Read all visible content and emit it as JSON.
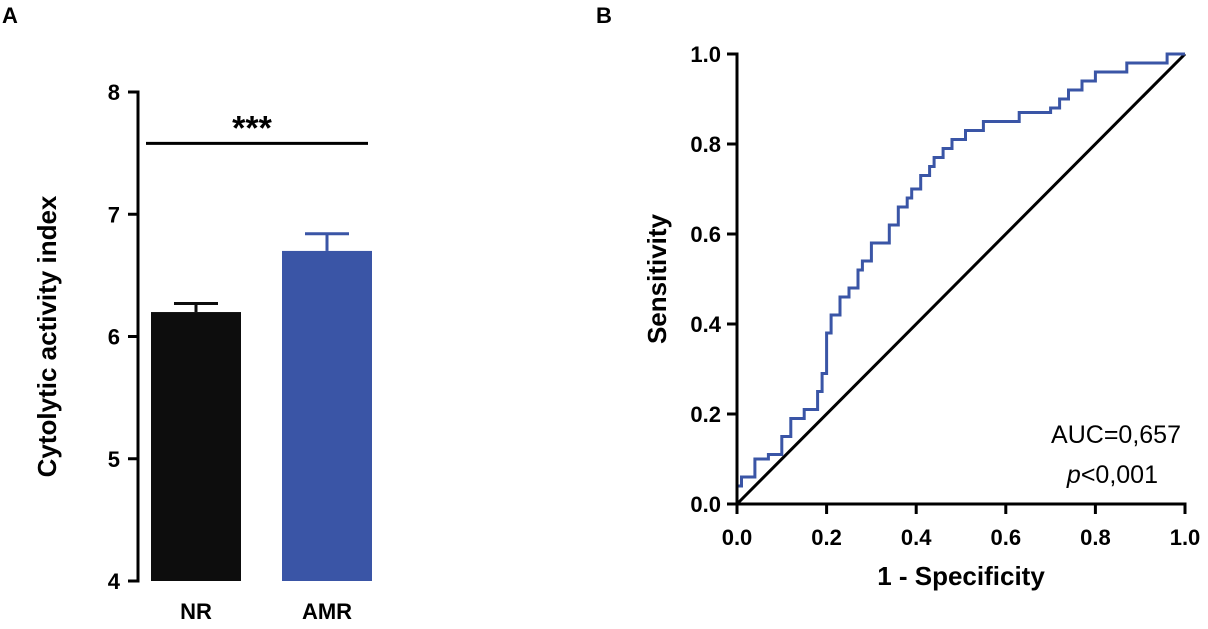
{
  "panels": {
    "a_label": "A",
    "b_label": "B"
  },
  "chart_data": [
    {
      "type": "bar",
      "panel": "A",
      "categories": [
        "NR",
        "AMR"
      ],
      "values": [
        6.2,
        6.7
      ],
      "errors_upper": [
        0.07,
        0.14
      ],
      "colors": [
        "#0d0d0d",
        "#3a55a6"
      ],
      "title": "",
      "xlabel": "",
      "ylabel": "Cytolytic activity index",
      "ylim": [
        4,
        8
      ],
      "yticks": [
        "4",
        "5",
        "6",
        "7",
        "8"
      ],
      "yticks_values": [
        4,
        5,
        6,
        7,
        8
      ],
      "significance": {
        "label": "***",
        "y": 7.58,
        "between": [
          "NR",
          "AMR"
        ]
      },
      "grid": false
    },
    {
      "type": "line",
      "panel": "B",
      "title": "",
      "xlabel": "1 - Specificity",
      "ylabel": "Sensitivity",
      "xlim": [
        0,
        1
      ],
      "ylim": [
        0,
        1
      ],
      "xticks": [
        "0.0",
        "0.2",
        "0.4",
        "0.6",
        "0.8",
        "1.0"
      ],
      "yticks": [
        "0.0",
        "0.2",
        "0.4",
        "0.6",
        "0.8",
        "1.0"
      ],
      "tick_values": [
        0,
        0.2,
        0.4,
        0.6,
        0.8,
        1.0
      ],
      "grid": false,
      "series": [
        {
          "name": "ROC",
          "color": "#3a55a6",
          "x": [
            0,
            0,
            0.01,
            0.01,
            0.04,
            0.04,
            0.07,
            0.07,
            0.1,
            0.1,
            0.12,
            0.12,
            0.15,
            0.15,
            0.18,
            0.18,
            0.19,
            0.19,
            0.2,
            0.2,
            0.21,
            0.21,
            0.23,
            0.23,
            0.25,
            0.25,
            0.27,
            0.27,
            0.28,
            0.28,
            0.3,
            0.3,
            0.34,
            0.34,
            0.36,
            0.36,
            0.38,
            0.38,
            0.39,
            0.39,
            0.41,
            0.41,
            0.43,
            0.43,
            0.44,
            0.44,
            0.46,
            0.46,
            0.48,
            0.48,
            0.51,
            0.51,
            0.55,
            0.55,
            0.63,
            0.63,
            0.7,
            0.7,
            0.72,
            0.72,
            0.74,
            0.74,
            0.77,
            0.77,
            0.8,
            0.8,
            0.87,
            0.87,
            0.96,
            0.96,
            1.0
          ],
          "y": [
            0,
            0.04,
            0.04,
            0.06,
            0.06,
            0.1,
            0.1,
            0.11,
            0.11,
            0.15,
            0.15,
            0.19,
            0.19,
            0.21,
            0.21,
            0.25,
            0.25,
            0.29,
            0.29,
            0.38,
            0.38,
            0.42,
            0.42,
            0.46,
            0.46,
            0.48,
            0.48,
            0.52,
            0.52,
            0.54,
            0.54,
            0.58,
            0.58,
            0.62,
            0.62,
            0.66,
            0.66,
            0.68,
            0.68,
            0.7,
            0.7,
            0.73,
            0.73,
            0.75,
            0.75,
            0.77,
            0.77,
            0.79,
            0.79,
            0.81,
            0.81,
            0.83,
            0.83,
            0.85,
            0.85,
            0.87,
            0.87,
            0.88,
            0.88,
            0.9,
            0.9,
            0.92,
            0.92,
            0.94,
            0.94,
            0.96,
            0.96,
            0.98,
            0.98,
            1.0,
            1.0
          ]
        },
        {
          "name": "Reference",
          "color": "#000000",
          "x": [
            0,
            1
          ],
          "y": [
            0,
            1
          ]
        }
      ],
      "annotations": {
        "auc": "AUC=0,657",
        "p_symbol": "p",
        "p_value": "<0,001"
      }
    }
  ]
}
